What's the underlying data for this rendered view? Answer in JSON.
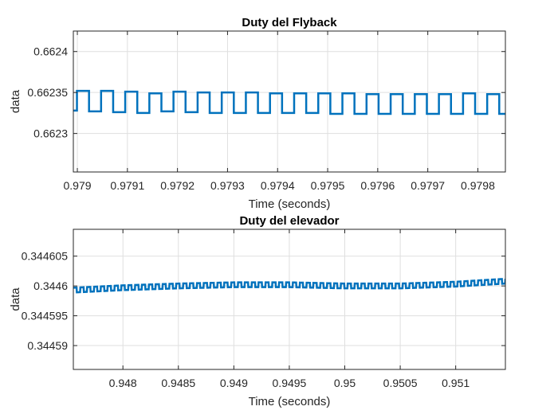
{
  "chart_data": [
    {
      "type": "line",
      "title": "Duty del Flyback",
      "xlabel": "Time (seconds)",
      "ylabel": "data",
      "xlim": [
        0.978992,
        0.979855
      ],
      "ylim": [
        0.662253,
        0.662425
      ],
      "xticks": [
        0.979,
        0.9791,
        0.9792,
        0.9793,
        0.9794,
        0.9795,
        0.9796,
        0.9797,
        0.9798
      ],
      "xtick_labels": [
        "0.979",
        "0.9791",
        "0.9792",
        "0.9793",
        "0.9794",
        "0.9795",
        "0.9796",
        "0.9797",
        "0.9798"
      ],
      "yticks": [
        0.6623,
        0.66235,
        0.6624
      ],
      "ytick_labels": [
        "0.6623",
        "0.66235",
        "0.6624"
      ],
      "grid": true,
      "series": [
        {
          "color": "#0072BD",
          "style": "square-wave",
          "x_start": 0.978992,
          "x_end": 0.979855,
          "period": 4.82e-05,
          "high_fraction": 0.5,
          "high_values": [
            0.662352,
            0.662352,
            0.662351,
            0.662349,
            0.662351,
            0.66235,
            0.66235,
            0.66235,
            0.662349,
            0.662349,
            0.662349,
            0.662349,
            0.662348,
            0.662348,
            0.662348,
            0.662348,
            0.662349,
            0.662348
          ],
          "low_values": [
            0.662328,
            0.662327,
            0.662326,
            0.662325,
            0.662327,
            0.662326,
            0.662325,
            0.662325,
            0.662325,
            0.662325,
            0.662325,
            0.662324,
            0.662324,
            0.662324,
            0.662324,
            0.662324,
            0.662324,
            0.662324
          ]
        }
      ]
    },
    {
      "type": "line",
      "title": "Duty del elevador",
      "xlabel": "Time (seconds)",
      "ylabel": "data",
      "xlim": [
        0.947553,
        0.951448
      ],
      "ylim": [
        0.344586,
        0.3446095
      ],
      "xticks": [
        0.948,
        0.9485,
        0.949,
        0.9495,
        0.95,
        0.9505,
        0.951
      ],
      "xtick_labels": [
        "0.948",
        "0.9485",
        "0.949",
        "0.9495",
        "0.95",
        "0.9505",
        "0.951"
      ],
      "yticks": [
        0.34459,
        0.344595,
        0.3446,
        0.344605
      ],
      "ytick_labels": [
        "0.34459",
        "0.344595",
        "0.3446",
        "0.344605"
      ],
      "grid": true,
      "series": [
        {
          "color": "#0072BD",
          "style": "oscillation",
          "x_start": 0.947553,
          "x_end": 0.951448,
          "cycles": 63,
          "amplitude": 4e-07,
          "envelope_x": [
            0.947553,
            0.948,
            0.9485,
            0.949,
            0.9495,
            0.95,
            0.9505,
            0.951,
            0.951448
          ],
          "envelope_y": [
            0.3445993,
            0.3445997,
            0.3446,
            0.3446002,
            0.3446002,
            0.3446,
            0.3446,
            0.3446003,
            0.3446008
          ]
        }
      ]
    }
  ]
}
